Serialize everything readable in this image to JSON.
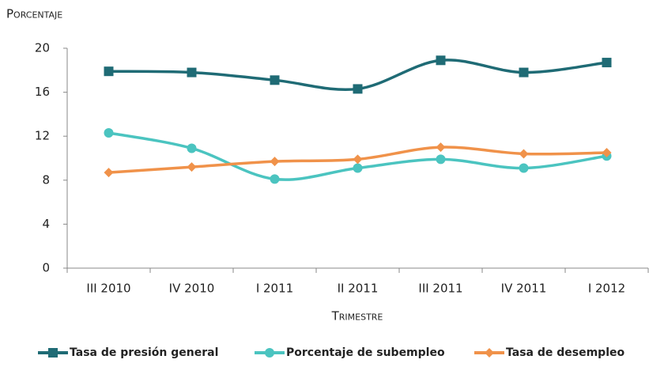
{
  "chart_data": {
    "type": "line",
    "y_label": "Porcentaje",
    "x_label": "Trimestre",
    "categories": [
      "III 2010",
      "IV 2010",
      "I 2011",
      "II 2011",
      "III 2011",
      "IV 2011",
      "I 2012"
    ],
    "series": [
      {
        "name": "Tasa de presión general",
        "color": "#1f6b75",
        "marker": "square",
        "values": [
          17.9,
          17.8,
          17.1,
          16.3,
          18.9,
          17.8,
          18.7
        ]
      },
      {
        "name": "Porcentaje de subempleo",
        "color": "#4bc4c0",
        "marker": "circle",
        "values": [
          12.3,
          10.9,
          8.1,
          9.1,
          9.9,
          9.1,
          10.2
        ]
      },
      {
        "name": "Tasa de desempleo",
        "color": "#f0924a",
        "marker": "diamond",
        "values": [
          8.7,
          9.2,
          9.7,
          9.9,
          11.0,
          10.4,
          10.5
        ]
      }
    ],
    "ylim": [
      0,
      20
    ],
    "yticks": [
      0,
      4,
      8,
      12,
      16,
      20
    ],
    "grid": false,
    "smooth": true,
    "legend": "bottom"
  }
}
